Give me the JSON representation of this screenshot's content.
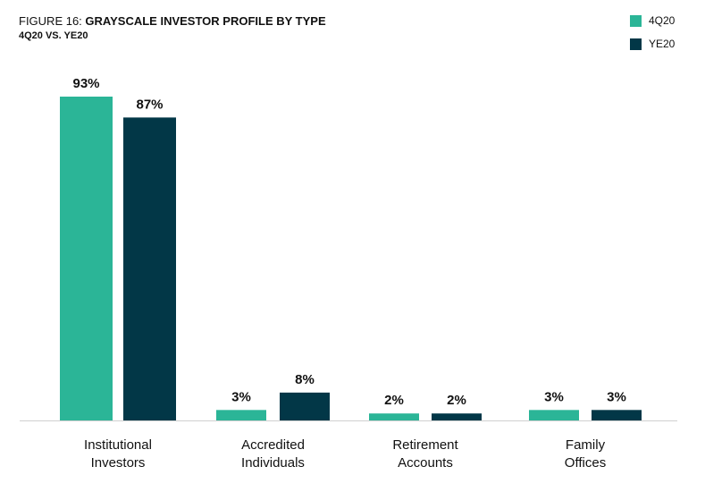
{
  "chart_data": {
    "type": "bar",
    "title_prefix": "FIGURE 16: ",
    "title": "GRAYSCALE INVESTOR PROFILE BY TYPE",
    "subtitle": "4Q20 VS. YE20",
    "categories": [
      [
        "Institutional",
        "Investors"
      ],
      [
        "Accredited",
        "Individuals"
      ],
      [
        "Retirement",
        "Accounts"
      ],
      [
        "Family",
        "Offices"
      ]
    ],
    "series": [
      {
        "name": "4Q20",
        "color": "#2bb597",
        "values": [
          93,
          3,
          2,
          3
        ],
        "labels": [
          "93%",
          "3%",
          "2%",
          "3%"
        ]
      },
      {
        "name": "YE20",
        "color": "#023747",
        "values": [
          87,
          8,
          2,
          3
        ],
        "labels": [
          "87%",
          "8%",
          "2%",
          "3%"
        ]
      }
    ],
    "value_suffix": "%",
    "ylim": [
      0,
      93
    ],
    "grid": false,
    "legend_position": "top-right"
  }
}
